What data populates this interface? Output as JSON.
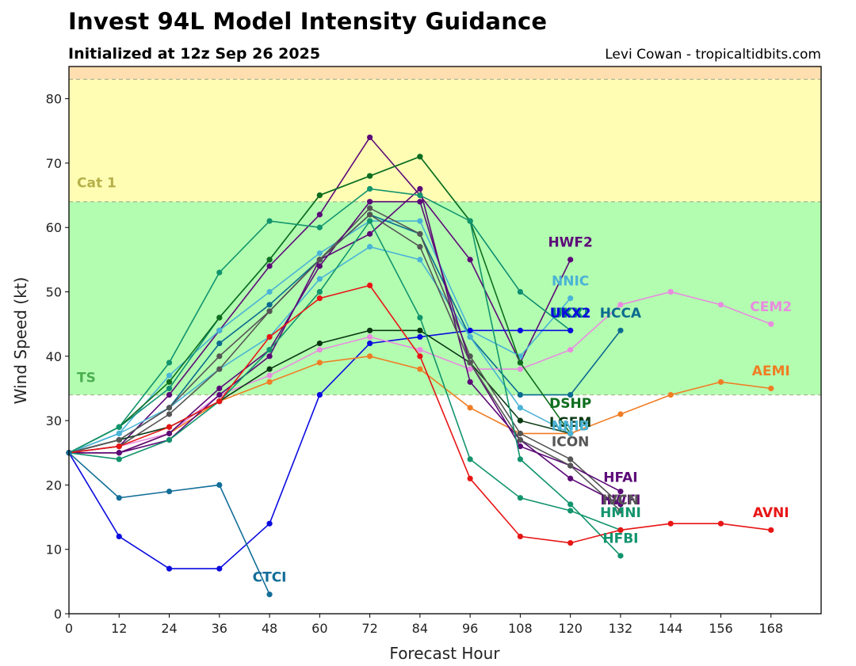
{
  "chart_data": {
    "type": "line",
    "title": "Invest 94L Model Intensity Guidance",
    "subtitle": "Initialized at 12z Sep 26 2025",
    "credit": "Levi Cowan - tropicaltidbits.com",
    "xlabel": "Forecast Hour",
    "ylabel": "Wind Speed (kt)",
    "xlim": [
      0,
      180
    ],
    "ylim": [
      0,
      85
    ],
    "xticks": [
      0,
      12,
      24,
      36,
      48,
      60,
      72,
      84,
      96,
      108,
      120,
      132,
      144,
      156,
      168
    ],
    "yticks": [
      0,
      10,
      20,
      30,
      40,
      50,
      60,
      70,
      80
    ],
    "bands": [
      {
        "name": "TS",
        "from": 34,
        "to": 64,
        "color": "#b3fdb0",
        "label_color": "#4caf50"
      },
      {
        "name": "Cat 1",
        "from": 64,
        "to": 83,
        "color": "#fffdb3",
        "label_color": "#b5b04a"
      },
      {
        "name": "",
        "from": 83,
        "to": 96,
        "color": "#ffdeb0",
        "label_color": "#d0a070"
      }
    ],
    "series": [
      {
        "name": "HWF2",
        "color": "#5c0a78",
        "x": [
          0,
          12,
          24,
          36,
          48,
          60,
          72,
          84,
          96,
          108,
          120
        ],
        "values": [
          25,
          26,
          34,
          44,
          54,
          62,
          74,
          65,
          55,
          39,
          55
        ],
        "label_x": 120,
        "label_y": 57
      },
      {
        "name": "NNIC",
        "color": "#4ab3d6",
        "x": [
          0,
          12,
          24,
          36,
          48,
          60,
          72,
          84,
          96,
          108,
          120
        ],
        "values": [
          25,
          28,
          37,
          44,
          50,
          56,
          61,
          61,
          44,
          40,
          49
        ],
        "label_x": 120,
        "label_y": 51
      },
      {
        "name": "UKXI",
        "color": "#0f8f72",
        "x": [
          0,
          12,
          24,
          36,
          48,
          60,
          72,
          84,
          96,
          108,
          120
        ],
        "values": [
          25,
          29,
          35,
          46,
          55,
          65,
          68,
          71,
          61,
          50,
          44
        ],
        "label_x": 120,
        "label_y": 46
      },
      {
        "name": "UKX2",
        "color": "#0a0ae0",
        "x": [
          0,
          12,
          24,
          36,
          48,
          60,
          72,
          84,
          96,
          108,
          120
        ],
        "values": [
          25,
          12,
          7,
          7,
          14,
          34,
          42,
          43,
          44,
          44,
          44
        ],
        "label_x": 120,
        "label_y": 46
      },
      {
        "name": "HCCA",
        "color": "#0b6b8f",
        "x": [
          0,
          12,
          24,
          36,
          48,
          60,
          72,
          84,
          96,
          108,
          120,
          132
        ],
        "values": [
          25,
          27,
          32,
          42,
          48,
          55,
          62,
          59,
          43,
          34,
          34,
          44
        ],
        "label_x": 132,
        "label_y": 46
      },
      {
        "name": "CEM2",
        "color": "#e98be0",
        "x": [
          0,
          12,
          24,
          36,
          48,
          60,
          72,
          84,
          96,
          108,
          120,
          132,
          144,
          156,
          168
        ],
        "values": [
          25,
          26,
          28,
          34,
          37,
          41,
          43,
          41,
          38,
          38,
          41,
          48,
          50,
          48,
          45
        ],
        "label_x": 168,
        "label_y": 47
      },
      {
        "name": "AEMI",
        "color": "#f07d24",
        "x": [
          0,
          12,
          24,
          36,
          48,
          60,
          72,
          84,
          96,
          108,
          120,
          132,
          144,
          156,
          168
        ],
        "values": [
          25,
          25,
          28,
          33,
          36,
          39,
          40,
          38,
          32,
          28,
          28,
          31,
          34,
          36,
          35
        ],
        "label_x": 168,
        "label_y": 37
      },
      {
        "name": "DSHP",
        "color": "#0e6e1e",
        "x": [
          0,
          12,
          24,
          36,
          48,
          60,
          72,
          84,
          96,
          108,
          120
        ],
        "values": [
          25,
          29,
          36,
          46,
          55,
          65,
          68,
          71,
          61,
          39,
          28
        ],
        "label_x": 120,
        "label_y": 32
      },
      {
        "name": "LGEM",
        "color": "#0b3a14",
        "x": [
          0,
          12,
          24,
          36,
          48,
          60,
          72,
          84,
          96,
          108,
          120
        ],
        "values": [
          25,
          27,
          29,
          33,
          38,
          42,
          44,
          44,
          39,
          30,
          28
        ],
        "label_x": 120,
        "label_y": 29
      },
      {
        "name": "NNIB",
        "color": "#4ab3d6",
        "x": [
          0,
          12,
          24,
          36,
          48,
          60,
          72,
          84,
          96,
          108,
          120
        ],
        "values": [
          25,
          28,
          32,
          38,
          43,
          52,
          57,
          55,
          43,
          32,
          28
        ],
        "label_x": 120,
        "label_y": 28.5
      },
      {
        "name": "ICON",
        "color": "#555555",
        "x": [
          0,
          12,
          24,
          36,
          48,
          60,
          72,
          84,
          96,
          108,
          120,
          132
        ],
        "values": [
          25,
          26,
          31,
          38,
          47,
          55,
          63,
          59,
          40,
          28,
          24,
          17
        ],
        "label_x": 120,
        "label_y": 26
      },
      {
        "name": "HFAI",
        "color": "#5c0a78",
        "x": [
          0,
          12,
          24,
          36,
          48,
          60,
          72,
          84,
          96,
          108,
          120,
          132
        ],
        "values": [
          25,
          25,
          28,
          35,
          41,
          54,
          64,
          64,
          39,
          26,
          23,
          19
        ],
        "label_x": 132,
        "label_y": 20.5
      },
      {
        "name": "HWFI",
        "color": "#5c0a78",
        "x": [
          0,
          12,
          24,
          36,
          48,
          60,
          72,
          84,
          96,
          108,
          120,
          132
        ],
        "values": [
          25,
          25,
          27,
          34,
          40,
          55,
          59,
          66,
          36,
          27,
          21,
          17
        ],
        "label_x": 132,
        "label_y": 17
      },
      {
        "name": "IVCN",
        "color": "#555555",
        "x": [
          0,
          12,
          24,
          36,
          48,
          60,
          72,
          84,
          96,
          108,
          120,
          132
        ],
        "values": [
          25,
          27,
          32,
          40,
          47,
          55,
          62,
          57,
          39,
          27,
          23,
          16
        ],
        "label_x": 132,
        "label_y": 17
      },
      {
        "name": "HMNI",
        "color": "#12946d",
        "x": [
          0,
          12,
          24,
          36,
          48,
          60,
          72,
          84,
          96,
          108,
          120,
          132
        ],
        "values": [
          25,
          24,
          27,
          33,
          41,
          50,
          61,
          46,
          24,
          18,
          16,
          13
        ],
        "label_x": 132,
        "label_y": 15
      },
      {
        "name": "HFBI",
        "color": "#12946d",
        "x": [
          0,
          12,
          24,
          36,
          48,
          60,
          72,
          84,
          96,
          108,
          120,
          132
        ],
        "values": [
          25,
          29,
          39,
          53,
          61,
          60,
          66,
          65,
          61,
          24,
          17,
          9
        ],
        "label_x": 132,
        "label_y": 11
      },
      {
        "name": "AVNI",
        "color": "#e81515",
        "x": [
          0,
          12,
          24,
          36,
          48,
          60,
          72,
          84,
          96,
          108,
          120,
          132,
          144,
          156,
          168
        ],
        "values": [
          25,
          26,
          29,
          33,
          43,
          49,
          51,
          40,
          21,
          12,
          11,
          13,
          14,
          14,
          13
        ],
        "label_x": 168,
        "label_y": 15
      },
      {
        "name": "CTCI",
        "color": "#136e98",
        "x": [
          0,
          12,
          24,
          36,
          48
        ],
        "values": [
          25,
          18,
          19,
          20,
          3
        ],
        "label_x": 48,
        "label_y": 5
      }
    ]
  }
}
